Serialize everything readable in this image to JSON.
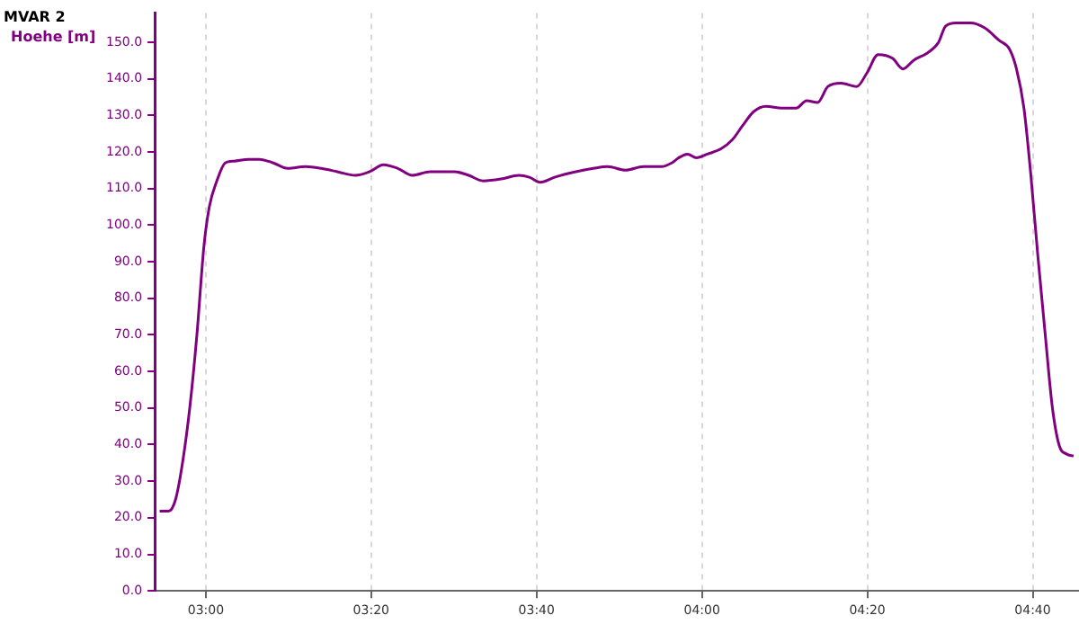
{
  "chart_data": {
    "type": "line",
    "title": "MVAR 2",
    "ylabel": "Hoehe [m]",
    "x": [
      2.907,
      2.925,
      2.939,
      2.953,
      2.968,
      2.982,
      2.996,
      3.007,
      3.022,
      3.039,
      3.057,
      3.086,
      3.108,
      3.136,
      3.165,
      3.201,
      3.233,
      3.265,
      3.301,
      3.33,
      3.358,
      3.387,
      3.416,
      3.452,
      3.502,
      3.53,
      3.559,
      3.595,
      3.631,
      3.652,
      3.674,
      3.703,
      3.746,
      3.781,
      3.81,
      3.846,
      3.882,
      3.918,
      3.939,
      3.953,
      3.971,
      3.989,
      4.011,
      4.039,
      4.061,
      4.082,
      4.104,
      4.129,
      4.161,
      4.19,
      4.211,
      4.233,
      4.254,
      4.28,
      4.312,
      4.333,
      4.355,
      4.384,
      4.405,
      4.427,
      4.455,
      4.477,
      4.491,
      4.513,
      4.541,
      4.57,
      4.599,
      4.62,
      4.634,
      4.649,
      4.663,
      4.677,
      4.692,
      4.706,
      4.72,
      4.735,
      4.749
    ],
    "series": [
      {
        "color": "#800080",
        "values": [
          21.8,
          21.8,
          25,
          35,
          50.5,
          70,
          94,
          105,
          112,
          117,
          117.5,
          118,
          118,
          117,
          115.5,
          116,
          115.5,
          114.6,
          113.6,
          114.6,
          116.5,
          115.5,
          113.6,
          114.6,
          114.6,
          113.6,
          112.1,
          112.6,
          113.6,
          113.1,
          111.7,
          113.1,
          114.6,
          115.5,
          116,
          115,
          116,
          116,
          117,
          118.4,
          119.4,
          118.4,
          119.4,
          120.9,
          123.3,
          127.2,
          131,
          132.5,
          132,
          132,
          134,
          133.5,
          137.9,
          138.8,
          137.9,
          141.7,
          146.6,
          145.6,
          142.7,
          145.1,
          147.1,
          150,
          154.4,
          155.3,
          155.3,
          153.9,
          150.5,
          148.1,
          142.7,
          132,
          113.6,
          91.7,
          70,
          50.5,
          39.8,
          37.4,
          36.9
        ]
      }
    ],
    "xlim": [
      2.897,
      4.76
    ],
    "xticks": [
      {
        "value": 3,
        "label": "03:00"
      },
      {
        "value": 3.3333,
        "label": "03:20"
      },
      {
        "value": 3.6667,
        "label": "03:40"
      },
      {
        "value": 4,
        "label": "04:00"
      },
      {
        "value": 4.3333,
        "label": "04:20"
      },
      {
        "value": 4.6667,
        "label": "04:40"
      }
    ],
    "ylim": [
      0,
      158
    ],
    "yticks": [
      {
        "value": 0,
        "label": "0.0"
      },
      {
        "value": 10,
        "label": "10.0"
      },
      {
        "value": 20,
        "label": "20.0"
      },
      {
        "value": 30,
        "label": "30.0"
      },
      {
        "value": 40,
        "label": "40.0"
      },
      {
        "value": 50,
        "label": "50.0"
      },
      {
        "value": 60,
        "label": "60.0"
      },
      {
        "value": 70,
        "label": "70.0"
      },
      {
        "value": 80,
        "label": "80.0"
      },
      {
        "value": 90,
        "label": "90.0"
      },
      {
        "value": 100,
        "label": "100.0"
      },
      {
        "value": 110,
        "label": "110.0"
      },
      {
        "value": 120,
        "label": "120.0"
      },
      {
        "value": 130,
        "label": "130.0"
      },
      {
        "value": 140,
        "label": "140.0"
      },
      {
        "value": 150,
        "label": "150.0"
      }
    ],
    "grid": "x",
    "line_style": "solid",
    "marker": "none"
  }
}
